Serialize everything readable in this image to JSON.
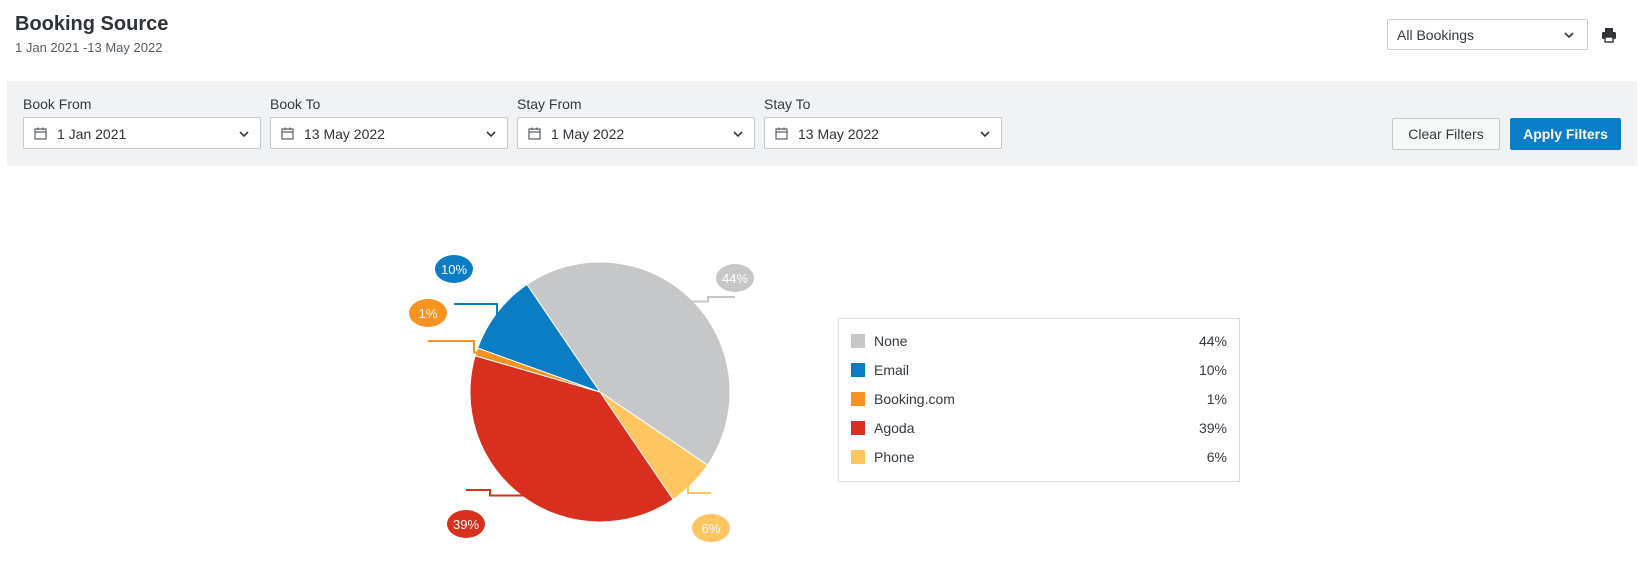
{
  "header": {
    "title": "Booking Source",
    "subtitle": "1 Jan 2021 -13 May 2022",
    "view_select": "All Bookings",
    "print_icon": "printer-icon"
  },
  "filters": {
    "book_from": {
      "label": "Book From",
      "value": "1 Jan 2021"
    },
    "book_to": {
      "label": "Book To",
      "value": "13 May 2022"
    },
    "stay_from": {
      "label": "Stay From",
      "value": "1 May 2022"
    },
    "stay_to": {
      "label": "Stay To",
      "value": "13 May 2022"
    },
    "clear_label": "Clear Filters",
    "apply_label": "Apply Filters",
    "calendar_icon": "calendar-icon",
    "chevron_icon": "chevron-down-icon"
  },
  "chart_data": {
    "type": "pie",
    "slices": [
      {
        "name": "None",
        "value": 44,
        "label": "44%",
        "color": "#c6c7c9"
      },
      {
        "name": "Phone",
        "value": 6,
        "label": "6%",
        "color": "#fec561"
      },
      {
        "name": "Agoda",
        "value": 39,
        "label": "39%",
        "color": "#d82f1e"
      },
      {
        "name": "Booking.com",
        "value": 1,
        "label": "1%",
        "color": "#f7931e"
      },
      {
        "name": "Email",
        "value": 10,
        "label": "10%",
        "color": "#0b7dc4"
      }
    ]
  },
  "legend": {
    "items": [
      {
        "name": "None",
        "value": "44%",
        "color": "#c6c7c9"
      },
      {
        "name": "Email",
        "value": "10%",
        "color": "#0b7dc4"
      },
      {
        "name": "Booking.com",
        "value": "1%",
        "color": "#f7931e"
      },
      {
        "name": "Agoda",
        "value": "39%",
        "color": "#d82f1e"
      },
      {
        "name": "Phone",
        "value": "6%",
        "color": "#fec561"
      }
    ]
  }
}
